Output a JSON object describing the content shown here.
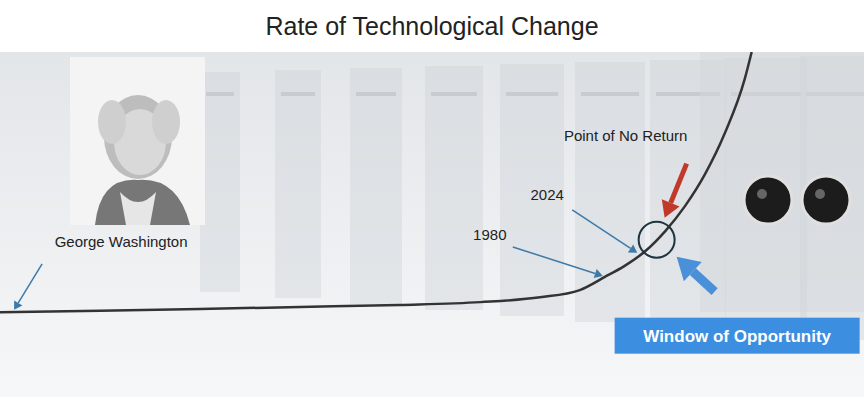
{
  "chart_data": {
    "type": "line",
    "title": "Rate of Technological Change",
    "x": [
      0,
      11.6,
      23.1,
      34.7,
      46.3,
      55.6,
      62.5,
      67.1,
      70.0,
      72.3,
      74.7,
      77.0,
      79.3,
      81.6,
      83.9,
      86.2,
      87.0
    ],
    "values": [
      24.6,
      25.0,
      25.5,
      26.1,
      26.7,
      27.5,
      28.9,
      31.0,
      34.8,
      38.0,
      42.3,
      48.1,
      55.4,
      64.6,
      76.5,
      92.2,
      100
    ],
    "color": "#333333",
    "xlim": [
      0,
      100
    ],
    "ylim": [
      0,
      100
    ],
    "grid": false,
    "tick_labels": false,
    "annotations": [
      {
        "text": "George Washington",
        "x": 1.4,
        "y": 24.7
      },
      {
        "text": "1980",
        "x": 70.0,
        "y": 34.8
      },
      {
        "text": "2024",
        "x": 74.1,
        "y": 41.2
      },
      {
        "text": "Point of No Return",
        "x": 76.0,
        "y": 45.6
      },
      {
        "text": "Window of Opportunity",
        "x": 76.0,
        "y": 45.6
      }
    ]
  }
}
